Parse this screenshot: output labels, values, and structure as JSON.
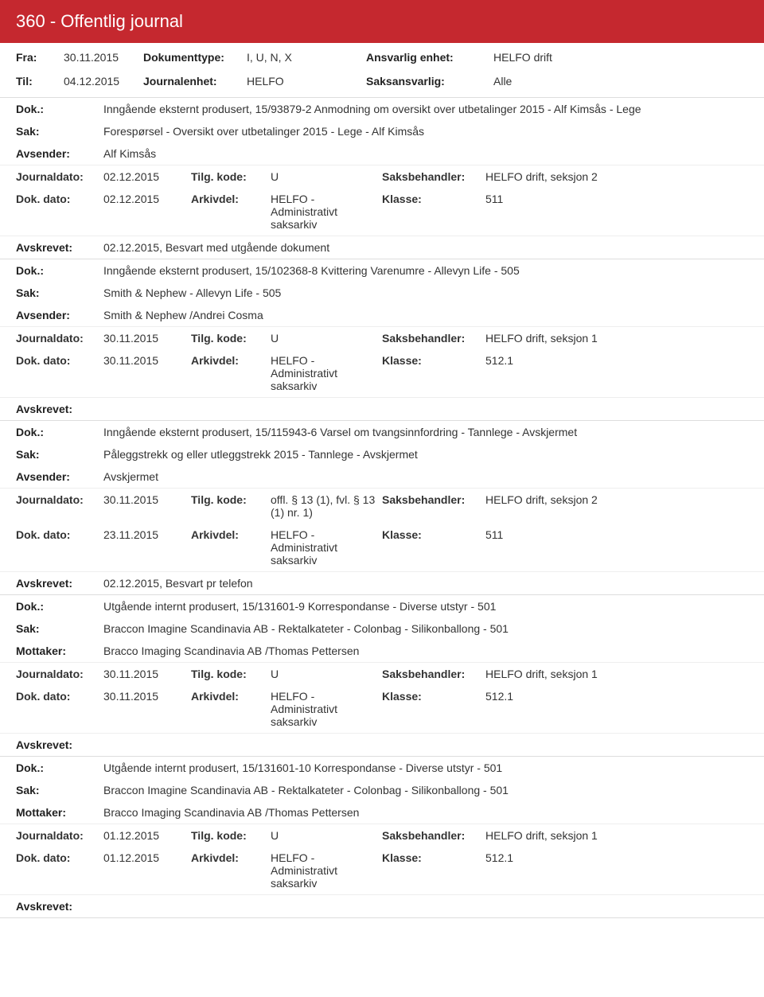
{
  "header": {
    "title": "360 - Offentlig journal"
  },
  "meta": {
    "fra_label": "Fra:",
    "fra": "30.11.2015",
    "til_label": "Til:",
    "til": "04.12.2015",
    "dokumenttype_label": "Dokumenttype:",
    "dokumenttype": "I, U, N, X",
    "journalenhet_label": "Journalenhet:",
    "journalenhet": "HELFO",
    "ansvarlig_label": "Ansvarlig enhet:",
    "ansvarlig": "HELFO drift",
    "saksansvarlig_label": "Saksansvarlig:",
    "saksansvarlig": "Alle"
  },
  "labels": {
    "dok": "Dok.:",
    "sak": "Sak:",
    "avsender": "Avsender:",
    "mottaker": "Mottaker:",
    "journaldato": "Journaldato:",
    "dokdato": "Dok. dato:",
    "tilgkode": "Tilg. kode:",
    "arkivdel": "Arkivdel:",
    "saksbehandler": "Saksbehandler:",
    "klasse": "Klasse:",
    "avskrevet": "Avskrevet:"
  },
  "entries": [
    {
      "dok": "Inngående eksternt produsert, 15/93879-2 Anmodning om oversikt over utbetalinger 2015 - Alf Kimsås - Lege",
      "sak": "Forespørsel - Oversikt over utbetalinger 2015 - Lege - Alf Kimsås",
      "party_label": "Avsender:",
      "party": "Alf Kimsås",
      "journaldato": "02.12.2015",
      "tilgkode": "U",
      "saksbehandler": "HELFO drift, seksjon 2",
      "dokdato": "02.12.2015",
      "arkivdel": "HELFO - Administrativt saksarkiv",
      "klasse": "511",
      "avskrevet": "02.12.2015, Besvart med utgående dokument"
    },
    {
      "dok": "Inngående eksternt produsert, 15/102368-8 Kvittering Varenumre - Allevyn Life - 505",
      "sak": "Smith &  Nephew - Allevyn Life - 505",
      "party_label": "Avsender:",
      "party": "Smith & Nephew /Andrei Cosma",
      "journaldato": "30.11.2015",
      "tilgkode": "U",
      "saksbehandler": "HELFO drift, seksjon 1",
      "dokdato": "30.11.2015",
      "arkivdel": "HELFO - Administrativt saksarkiv",
      "klasse": "512.1",
      "avskrevet": ""
    },
    {
      "dok": "Inngående eksternt produsert, 15/115943-6 Varsel om tvangsinnfordring - Tannlege - Avskjermet",
      "sak": "Påleggstrekk og eller utleggstrekk 2015 - Tannlege - Avskjermet",
      "party_label": "Avsender:",
      "party": "Avskjermet",
      "journaldato": "30.11.2015",
      "tilgkode": "offl. § 13 (1), fvl. § 13 (1) nr. 1)",
      "saksbehandler": "HELFO drift, seksjon 2",
      "dokdato": "23.11.2015",
      "arkivdel": "HELFO - Administrativt saksarkiv",
      "klasse": "511",
      "avskrevet": "02.12.2015, Besvart pr telefon"
    },
    {
      "dok": "Utgående internt produsert, 15/131601-9 Korrespondanse - Diverse utstyr - 501",
      "sak": "Braccon Imagine Scandinavia AB - Rektalkateter - Colonbag - Silikonballong - 501",
      "party_label": "Mottaker:",
      "party": "Bracco Imaging Scandinavia AB /Thomas Pettersen",
      "journaldato": "30.11.2015",
      "tilgkode": "U",
      "saksbehandler": "HELFO drift, seksjon 1",
      "dokdato": "30.11.2015",
      "arkivdel": "HELFO - Administrativt saksarkiv",
      "klasse": "512.1",
      "avskrevet": ""
    },
    {
      "dok": "Utgående internt produsert, 15/131601-10 Korrespondanse - Diverse utstyr - 501",
      "sak": "Braccon Imagine Scandinavia AB - Rektalkateter - Colonbag - Silikonballong - 501",
      "party_label": "Mottaker:",
      "party": "Bracco Imaging Scandinavia AB /Thomas Pettersen",
      "journaldato": "01.12.2015",
      "tilgkode": "U",
      "saksbehandler": "HELFO drift, seksjon 1",
      "dokdato": "01.12.2015",
      "arkivdel": "HELFO - Administrativt saksarkiv",
      "klasse": "512.1",
      "avskrevet": ""
    }
  ]
}
